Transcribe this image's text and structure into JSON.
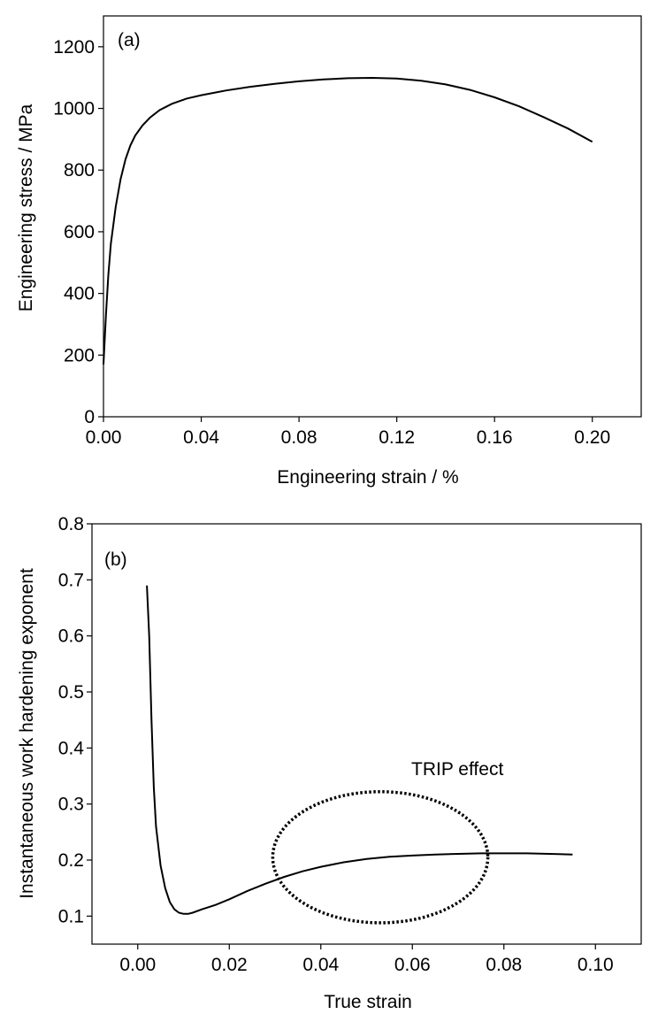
{
  "chart_data": [
    {
      "type": "line",
      "panel_label": "(a)",
      "xlabel": "Engineering strain / %",
      "ylabel": "Engineering stress / MPa",
      "xlim": [
        0.0,
        0.22
      ],
      "ylim": [
        0,
        1300
      ],
      "x_ticks": [
        "0.00",
        "0.04",
        "0.08",
        "0.12",
        "0.16",
        "0.20"
      ],
      "x_tick_values": [
        0.0,
        0.04,
        0.08,
        0.12,
        0.16,
        0.2
      ],
      "y_ticks": [
        "0",
        "200",
        "400",
        "600",
        "800",
        "1000",
        "1200"
      ],
      "y_tick_values": [
        0,
        200,
        400,
        600,
        800,
        1000,
        1200
      ],
      "grid": false,
      "series": [
        {
          "x": [
            0.0,
            0.001,
            0.002,
            0.003,
            0.005,
            0.007,
            0.009,
            0.011,
            0.013,
            0.016,
            0.019,
            0.023,
            0.028,
            0.034,
            0.04,
            0.05,
            0.06,
            0.07,
            0.08,
            0.09,
            0.1,
            0.11,
            0.12,
            0.13,
            0.14,
            0.15,
            0.16,
            0.17,
            0.18,
            0.19,
            0.2
          ],
          "y": [
            170,
            330,
            460,
            560,
            680,
            770,
            835,
            880,
            912,
            945,
            970,
            995,
            1015,
            1032,
            1043,
            1058,
            1070,
            1080,
            1088,
            1094,
            1098,
            1099,
            1097,
            1090,
            1078,
            1060,
            1036,
            1007,
            972,
            935,
            892
          ]
        }
      ]
    },
    {
      "type": "line",
      "panel_label": "(b)",
      "xlabel": "True strain",
      "ylabel": "Instantaneous work hardening exponent",
      "xlim": [
        -0.01,
        0.11
      ],
      "ylim": [
        0.05,
        0.8
      ],
      "x_ticks": [
        "0.00",
        "0.02",
        "0.04",
        "0.06",
        "0.08",
        "0.10"
      ],
      "x_tick_values": [
        0.0,
        0.02,
        0.04,
        0.06,
        0.08,
        0.1
      ],
      "y_ticks": [
        "0.1",
        "0.2",
        "0.3",
        "0.4",
        "0.5",
        "0.6",
        "0.7",
        "0.8"
      ],
      "y_tick_values": [
        0.1,
        0.2,
        0.3,
        0.4,
        0.5,
        0.6,
        0.7,
        0.8
      ],
      "grid": false,
      "annotation": {
        "text": "TRIP effect",
        "anchor_x": 0.053,
        "anchor_y": 0.205,
        "radius_x": 0.0235,
        "radius_y": 0.117
      },
      "series": [
        {
          "x": [
            0.002,
            0.0025,
            0.003,
            0.0035,
            0.004,
            0.005,
            0.006,
            0.007,
            0.008,
            0.009,
            0.01,
            0.011,
            0.012,
            0.014,
            0.017,
            0.02,
            0.024,
            0.028,
            0.032,
            0.036,
            0.04,
            0.045,
            0.05,
            0.055,
            0.06,
            0.065,
            0.07,
            0.075,
            0.08,
            0.085,
            0.09,
            0.095
          ],
          "y": [
            0.69,
            0.6,
            0.45,
            0.33,
            0.26,
            0.19,
            0.15,
            0.125,
            0.112,
            0.106,
            0.104,
            0.104,
            0.106,
            0.112,
            0.12,
            0.13,
            0.145,
            0.158,
            0.17,
            0.18,
            0.188,
            0.196,
            0.202,
            0.206,
            0.208,
            0.21,
            0.211,
            0.212,
            0.212,
            0.212,
            0.211,
            0.21
          ]
        }
      ]
    }
  ]
}
